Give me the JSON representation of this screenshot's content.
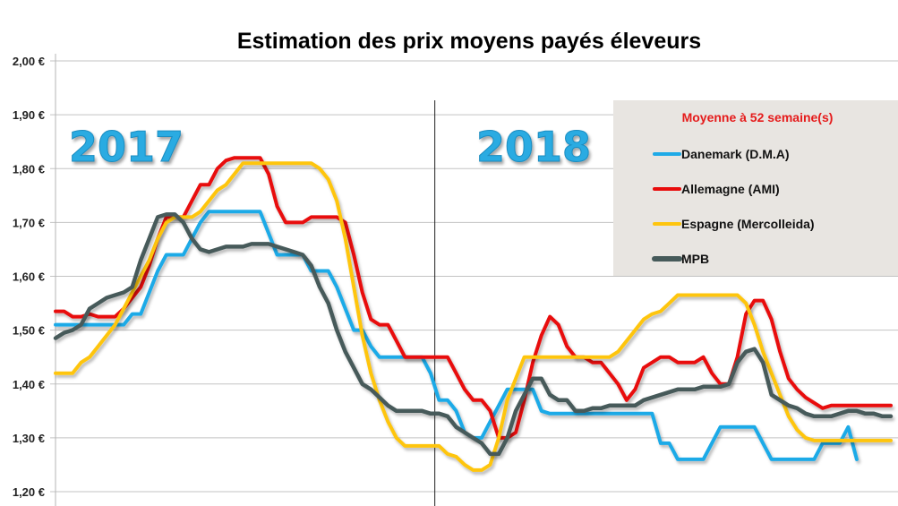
{
  "chart_data": {
    "type": "line",
    "title": "Estimation des prix moyens payés éleveurs",
    "xlabel": "",
    "ylabel": "",
    "ylim": [
      1.2,
      2.0
    ],
    "yticks": [
      "1,20 €",
      "1,30 €",
      "1,40 €",
      "1,50 €",
      "1,60 €",
      "1,70 €",
      "1,80 €",
      "1,90 €",
      "2,00 €"
    ],
    "ytick_values": [
      1.2,
      1.3,
      1.4,
      1.5,
      1.6,
      1.7,
      1.8,
      1.9,
      2.0
    ],
    "grid": true,
    "x_unit": "week",
    "year_annotations": [
      {
        "label": "2017",
        "start_index": 0
      },
      {
        "label": "2018",
        "start_index": 44
      }
    ],
    "year_divider_index": 44.5,
    "legend": {
      "title": "Moyenne à  52 semaine(s)",
      "placement": "top-right"
    },
    "series": [
      {
        "name": "Danemark (D.M.A)",
        "color": "#1eaae7",
        "values": [
          1.51,
          1.51,
          1.51,
          1.51,
          1.51,
          1.51,
          1.51,
          1.51,
          1.51,
          1.53,
          1.53,
          1.57,
          1.61,
          1.64,
          1.64,
          1.64,
          1.67,
          1.7,
          1.72,
          1.72,
          1.72,
          1.72,
          1.72,
          1.72,
          1.72,
          1.68,
          1.64,
          1.64,
          1.64,
          1.64,
          1.61,
          1.61,
          1.61,
          1.58,
          1.54,
          1.5,
          1.5,
          1.47,
          1.45,
          1.45,
          1.45,
          1.45,
          1.45,
          1.45,
          1.42,
          1.37,
          1.37,
          1.35,
          1.31,
          1.3,
          1.3,
          1.33,
          1.36,
          1.39,
          1.39,
          1.39,
          1.39,
          1.35,
          1.345,
          1.345,
          1.345,
          1.345,
          1.345,
          1.345,
          1.345,
          1.345,
          1.345,
          1.345,
          1.345,
          1.345,
          1.345,
          1.29,
          1.29,
          1.26,
          1.26,
          1.26,
          1.26,
          1.29,
          1.32,
          1.32,
          1.32,
          1.32,
          1.32,
          1.29,
          1.26,
          1.26,
          1.26,
          1.26,
          1.26,
          1.26,
          1.29,
          1.29,
          1.29,
          1.32,
          1.26
        ]
      },
      {
        "name": "Allemagne (AMI)",
        "color": "#e80c0c",
        "values": [
          1.535,
          1.535,
          1.525,
          1.525,
          1.53,
          1.525,
          1.525,
          1.525,
          1.54,
          1.56,
          1.58,
          1.62,
          1.67,
          1.71,
          1.71,
          1.71,
          1.74,
          1.77,
          1.77,
          1.8,
          1.815,
          1.82,
          1.82,
          1.82,
          1.82,
          1.79,
          1.73,
          1.7,
          1.7,
          1.7,
          1.71,
          1.71,
          1.71,
          1.71,
          1.7,
          1.64,
          1.57,
          1.52,
          1.51,
          1.51,
          1.48,
          1.45,
          1.45,
          1.45,
          1.45,
          1.45,
          1.45,
          1.42,
          1.39,
          1.37,
          1.37,
          1.35,
          1.3,
          1.3,
          1.31,
          1.37,
          1.44,
          1.49,
          1.525,
          1.51,
          1.47,
          1.45,
          1.45,
          1.44,
          1.44,
          1.42,
          1.4,
          1.37,
          1.39,
          1.43,
          1.44,
          1.45,
          1.45,
          1.44,
          1.44,
          1.44,
          1.45,
          1.42,
          1.4,
          1.4,
          1.45,
          1.53,
          1.555,
          1.555,
          1.52,
          1.46,
          1.41,
          1.39,
          1.375,
          1.365,
          1.355,
          1.36,
          1.36,
          1.36,
          1.36,
          1.36,
          1.36,
          1.36,
          1.36
        ]
      },
      {
        "name": "Espagne (Mercolleida)",
        "color": "#fec50e",
        "values": [
          1.42,
          1.42,
          1.42,
          1.44,
          1.45,
          1.47,
          1.49,
          1.51,
          1.54,
          1.57,
          1.6,
          1.63,
          1.67,
          1.7,
          1.71,
          1.71,
          1.71,
          1.72,
          1.74,
          1.76,
          1.77,
          1.79,
          1.81,
          1.81,
          1.81,
          1.81,
          1.81,
          1.81,
          1.81,
          1.81,
          1.81,
          1.8,
          1.78,
          1.74,
          1.67,
          1.58,
          1.49,
          1.42,
          1.37,
          1.33,
          1.3,
          1.285,
          1.285,
          1.285,
          1.285,
          1.285,
          1.27,
          1.265,
          1.25,
          1.24,
          1.24,
          1.25,
          1.3,
          1.37,
          1.41,
          1.45,
          1.45,
          1.45,
          1.45,
          1.45,
          1.45,
          1.45,
          1.45,
          1.45,
          1.45,
          1.45,
          1.46,
          1.48,
          1.5,
          1.52,
          1.53,
          1.535,
          1.55,
          1.565,
          1.565,
          1.565,
          1.565,
          1.565,
          1.565,
          1.565,
          1.565,
          1.55,
          1.51,
          1.46,
          1.42,
          1.38,
          1.34,
          1.315,
          1.3,
          1.295,
          1.295,
          1.295,
          1.295,
          1.295,
          1.295,
          1.295,
          1.295,
          1.295,
          1.295
        ]
      },
      {
        "name": "MPB",
        "color": "#465a5a",
        "values": [
          1.485,
          1.495,
          1.5,
          1.51,
          1.54,
          1.55,
          1.56,
          1.565,
          1.57,
          1.58,
          1.63,
          1.67,
          1.71,
          1.715,
          1.715,
          1.7,
          1.67,
          1.65,
          1.645,
          1.65,
          1.655,
          1.655,
          1.655,
          1.66,
          1.66,
          1.66,
          1.655,
          1.65,
          1.645,
          1.64,
          1.62,
          1.58,
          1.55,
          1.5,
          1.46,
          1.43,
          1.4,
          1.39,
          1.375,
          1.36,
          1.35,
          1.35,
          1.35,
          1.35,
          1.345,
          1.345,
          1.34,
          1.32,
          1.31,
          1.3,
          1.29,
          1.27,
          1.27,
          1.3,
          1.35,
          1.38,
          1.41,
          1.41,
          1.38,
          1.37,
          1.37,
          1.35,
          1.35,
          1.355,
          1.355,
          1.36,
          1.36,
          1.36,
          1.36,
          1.37,
          1.375,
          1.38,
          1.385,
          1.39,
          1.39,
          1.39,
          1.395,
          1.395,
          1.395,
          1.4,
          1.44,
          1.46,
          1.465,
          1.44,
          1.38,
          1.37,
          1.36,
          1.355,
          1.345,
          1.34,
          1.34,
          1.34,
          1.345,
          1.35,
          1.35,
          1.345,
          1.345,
          1.34,
          1.34
        ]
      }
    ]
  }
}
